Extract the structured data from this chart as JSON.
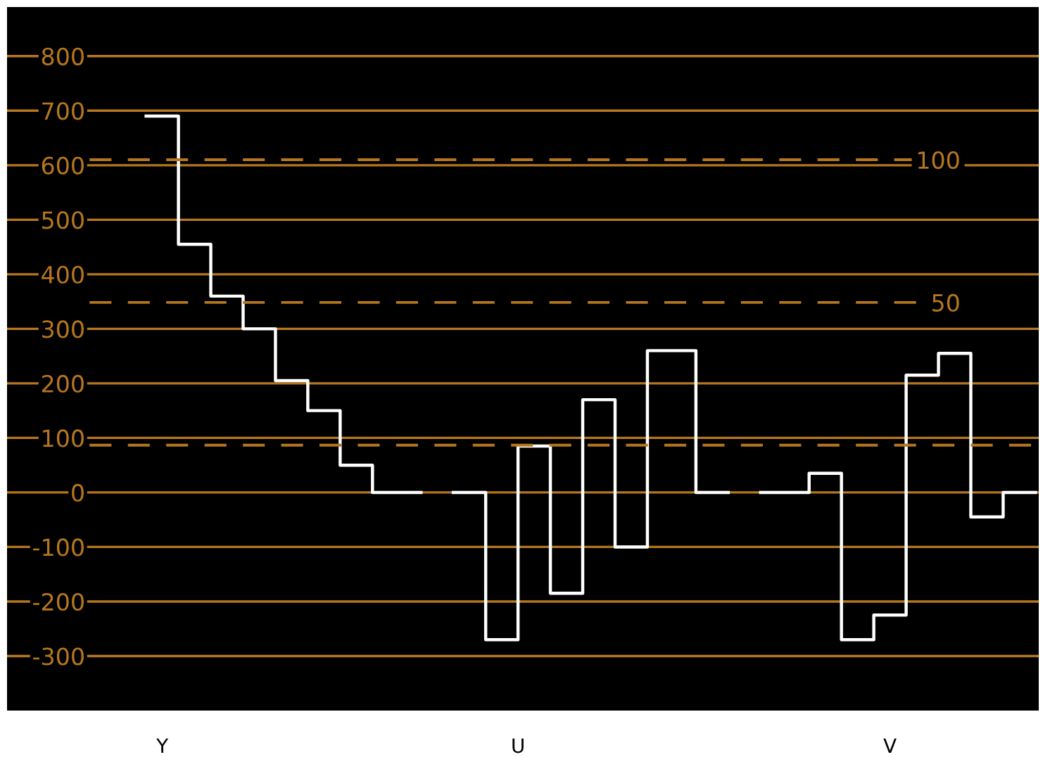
{
  "chart_data": {
    "type": "step",
    "categories": [
      null,
      null,
      null,
      null,
      null,
      null,
      null,
      "Y",
      null,
      null,
      null,
      null,
      null,
      null,
      null,
      null,
      null,
      null,
      null,
      null,
      null,
      null,
      null,
      null,
      null,
      null,
      null,
      null,
      null,
      "U",
      null,
      null,
      null,
      null,
      null,
      null,
      null,
      null,
      null,
      null,
      null,
      null,
      null,
      null,
      null,
      null,
      null,
      null,
      null,
      null,
      null,
      null,
      "V",
      null,
      null,
      null,
      null,
      null,
      null,
      null,
      null,
      null
    ],
    "series": [
      {
        "color": "#ffffff",
        "values": [
          null,
          null,
          null,
          null,
          null,
          null,
          690,
          690,
          455,
          455,
          360,
          360,
          300,
          300,
          205,
          205,
          150,
          150,
          50,
          50,
          0,
          0,
          0,
          null,
          null,
          0,
          0,
          -270,
          -270,
          85,
          85,
          -185,
          -185,
          170,
          170,
          -100,
          -100,
          260,
          260,
          260,
          0,
          0,
          null,
          null,
          0,
          0,
          0,
          35,
          35,
          -270,
          -270,
          -225,
          -225,
          215,
          215,
          255,
          255,
          -45,
          -45,
          0,
          0,
          0
        ]
      }
    ],
    "ylim": [
      -400,
      890
    ],
    "yticks": [
      -300,
      -200,
      -100,
      0,
      100,
      200,
      300,
      400,
      500,
      600,
      700,
      800
    ],
    "y2lim": [
      -93,
      153.5
    ],
    "y2ticks": [
      {
        "value": 0,
        "label": null
      },
      50,
      100
    ],
    "grid": "y"
  }
}
